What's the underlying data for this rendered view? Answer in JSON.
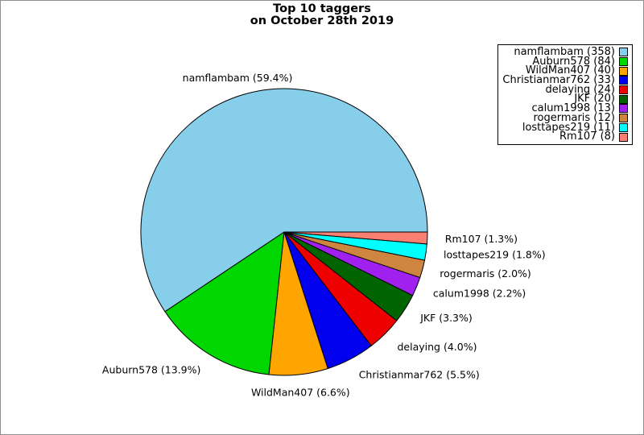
{
  "window": {
    "border_color": "#8f8f8f",
    "background_color": "#ffffff"
  },
  "chart_data": {
    "type": "pie",
    "title_lines": [
      "Top 10 taggers",
      "on October 28th 2019"
    ],
    "legend_position": "top-right",
    "start_angle_deg": 0,
    "direction": "counterclockwise",
    "series": [
      {
        "name": "namflambam",
        "count": 358,
        "percent": "59.4",
        "color": "#87CEEB"
      },
      {
        "name": "Auburn578",
        "count": 84,
        "percent": "13.9",
        "color": "#00D700"
      },
      {
        "name": "WildMan407",
        "count": 40,
        "percent": "6.6",
        "color": "#FFA500"
      },
      {
        "name": "Christianmar762",
        "count": 33,
        "percent": "5.5",
        "color": "#0000EE"
      },
      {
        "name": "delaying",
        "count": 24,
        "percent": "4.0",
        "color": "#EE0000"
      },
      {
        "name": "JKF",
        "count": 20,
        "percent": "3.3",
        "color": "#006400"
      },
      {
        "name": "calum1998",
        "count": 13,
        "percent": "2.2",
        "color": "#A020F0"
      },
      {
        "name": "rogermaris",
        "count": 12,
        "percent": "2.0",
        "color": "#CD853F"
      },
      {
        "name": "losttapes219",
        "count": 11,
        "percent": "1.8",
        "color": "#00FFFF"
      },
      {
        "name": "Rm107",
        "count": 8,
        "percent": "1.3",
        "color": "#FA8072"
      }
    ]
  }
}
